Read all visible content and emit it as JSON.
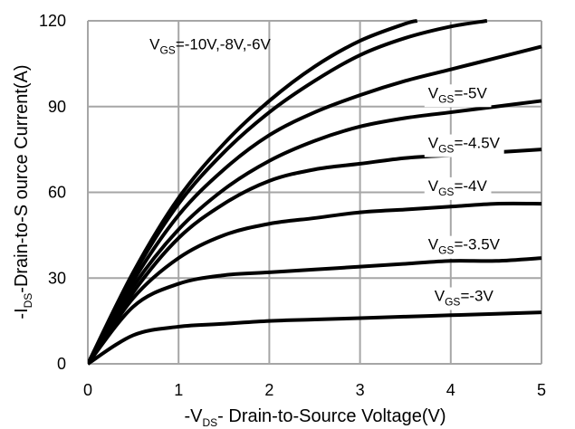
{
  "chart_data": {
    "type": "line",
    "title": "",
    "xlabel": {
      "pre": "-V",
      "sub": "DS",
      "post": "- Drain-to-Source Voltage(V)"
    },
    "ylabel": {
      "pre": "-I",
      "sub": "DS",
      "post": "-Drain-to-S ource Current(A)"
    },
    "xlim": [
      0,
      5
    ],
    "ylim": [
      0,
      120
    ],
    "x_ticks": [
      "0",
      "1",
      "2",
      "3",
      "4",
      "5"
    ],
    "y_ticks": [
      "0",
      "30",
      "60",
      "90",
      "120"
    ],
    "grid": true,
    "line_color": "#000000",
    "grid_color": "#a6a6a6",
    "series": [
      {
        "name": "VGS=-10V",
        "x": [
          0,
          0.5,
          1,
          1.5,
          2,
          2.5,
          3,
          3.5,
          3.63
        ],
        "y": [
          0,
          32,
          58,
          77,
          92,
          104,
          113,
          119,
          120
        ]
      },
      {
        "name": "VGS=-8V",
        "x": [
          0,
          0.5,
          1,
          1.5,
          2,
          2.5,
          3,
          3.5,
          4,
          4.4
        ],
        "y": [
          0,
          31,
          56,
          74,
          88,
          99,
          108,
          114,
          118,
          120
        ]
      },
      {
        "name": "VGS=-6V",
        "x": [
          0,
          0.5,
          1,
          1.5,
          2,
          2.5,
          3,
          3.5,
          4,
          4.5,
          5
        ],
        "y": [
          0,
          29,
          52,
          68,
          80,
          88,
          94,
          99,
          103,
          107,
          111
        ]
      },
      {
        "name": "VGS=-5V",
        "x": [
          0,
          0.5,
          1,
          1.5,
          2,
          2.5,
          3,
          3.5,
          4,
          4.5,
          5
        ],
        "y": [
          0,
          27,
          47,
          61,
          71,
          78,
          83,
          86,
          88,
          90,
          92
        ]
      },
      {
        "name": "VGS=-4.5V",
        "x": [
          0,
          0.5,
          1,
          1.5,
          2,
          2.5,
          3,
          3.5,
          4,
          4.5,
          5
        ],
        "y": [
          0,
          25,
          44,
          56,
          64,
          68,
          70,
          72,
          73,
          74,
          75
        ]
      },
      {
        "name": "VGS=-4V",
        "x": [
          0,
          0.5,
          1,
          1.5,
          2,
          2.5,
          3,
          3.5,
          4,
          4.5,
          5
        ],
        "y": [
          0,
          23,
          37,
          45,
          49,
          51,
          53,
          54,
          55,
          56,
          56
        ]
      },
      {
        "name": "VGS=-3.5V",
        "x": [
          0,
          0.5,
          1,
          1.5,
          2,
          2.5,
          3,
          3.5,
          4,
          4.5,
          5
        ],
        "y": [
          0,
          20,
          28,
          31,
          32,
          33,
          34,
          35,
          36,
          36,
          37
        ]
      },
      {
        "name": "VGS=-3V",
        "x": [
          0,
          0.5,
          1,
          1.5,
          2,
          2.5,
          3,
          3.5,
          4,
          4.5,
          5
        ],
        "y": [
          0,
          10,
          13,
          14,
          15,
          15.5,
          16,
          16.5,
          17,
          17.5,
          18
        ]
      }
    ],
    "annotations": [
      {
        "id": "top",
        "pre": "V",
        "sub": "GS",
        "post": "=-10V,-8V,-6V",
        "x": 0.68,
        "y": 110
      },
      {
        "id": "v5",
        "pre": "V",
        "sub": "GS",
        "post": "=-5V",
        "x": 3.75,
        "y": 93
      },
      {
        "id": "v45",
        "pre": "V",
        "sub": "GS",
        "post": "=-4.5V",
        "x": 3.75,
        "y": 75.5
      },
      {
        "id": "v4",
        "pre": "V",
        "sub": "GS",
        "post": "=-4V",
        "x": 3.75,
        "y": 60.5
      },
      {
        "id": "v35",
        "pre": "V",
        "sub": "GS",
        "post": "=-3.5V",
        "x": 3.75,
        "y": 40
      },
      {
        "id": "v3",
        "pre": "V",
        "sub": "GS",
        "post": "=-3V",
        "x": 3.82,
        "y": 22
      }
    ]
  }
}
